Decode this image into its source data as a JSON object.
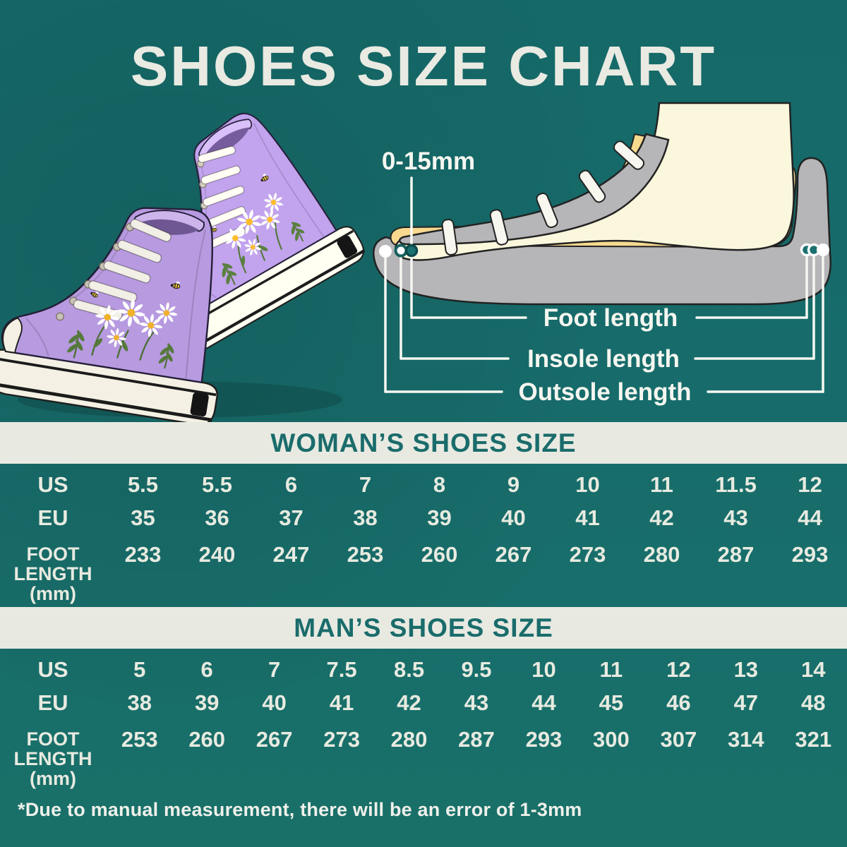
{
  "page": {
    "title": "SHOES SIZE CHART",
    "footnote": "*Due to manual measurement, there will be an error of 1-3mm",
    "colors": {
      "background_teal": "#176C6B",
      "band_background": "#E8EAE2",
      "band_text_teal": "#1A6C6B",
      "light_text": "#E7EAE0",
      "measure_line_white": "#F6F7F1",
      "sole_gray": "#B6B5B7",
      "insole_yellow": "#F6D98F",
      "foot_cream": "#FBF7DD",
      "sneaker_lavender": "#B79AE0",
      "daisy_center_yellow": "#F0B22A"
    }
  },
  "diagram": {
    "tolerance_label": "0-15mm",
    "measurements": [
      {
        "label": "Foot length"
      },
      {
        "label": "Insole length"
      },
      {
        "label": "Outsole length"
      }
    ]
  },
  "tables": [
    {
      "title": "WOMAN’S SHOES SIZE",
      "rows": [
        {
          "label": "US",
          "values": [
            "5.5",
            "5.5",
            "6",
            "7",
            "8",
            "9",
            "10",
            "11",
            "11.5",
            "12"
          ]
        },
        {
          "label": "EU",
          "values": [
            "35",
            "36",
            "37",
            "38",
            "39",
            "40",
            "41",
            "42",
            "43",
            "44"
          ]
        },
        {
          "label": "FOOT LENGTH (mm)",
          "label_lines": [
            "FOOT",
            "LENGTH",
            "(mm)"
          ],
          "values": [
            "233",
            "240",
            "247",
            "253",
            "260",
            "267",
            "273",
            "280",
            "287",
            "293"
          ]
        }
      ]
    },
    {
      "title": "MAN’S SHOES SIZE",
      "rows": [
        {
          "label": "US",
          "values": [
            "5",
            "6",
            "7",
            "7.5",
            "8.5",
            "9.5",
            "10",
            "11",
            "12",
            "13",
            "14"
          ]
        },
        {
          "label": "EU",
          "values": [
            "38",
            "39",
            "40",
            "41",
            "42",
            "43",
            "44",
            "45",
            "46",
            "47",
            "48"
          ]
        },
        {
          "label": "FOOT LENGTH (mm)",
          "label_lines": [
            "FOOT",
            "LENGTH",
            "(mm)"
          ],
          "values": [
            "253",
            "260",
            "267",
            "273",
            "280",
            "287",
            "293",
            "300",
            "307",
            "314",
            "321"
          ]
        }
      ]
    }
  ]
}
